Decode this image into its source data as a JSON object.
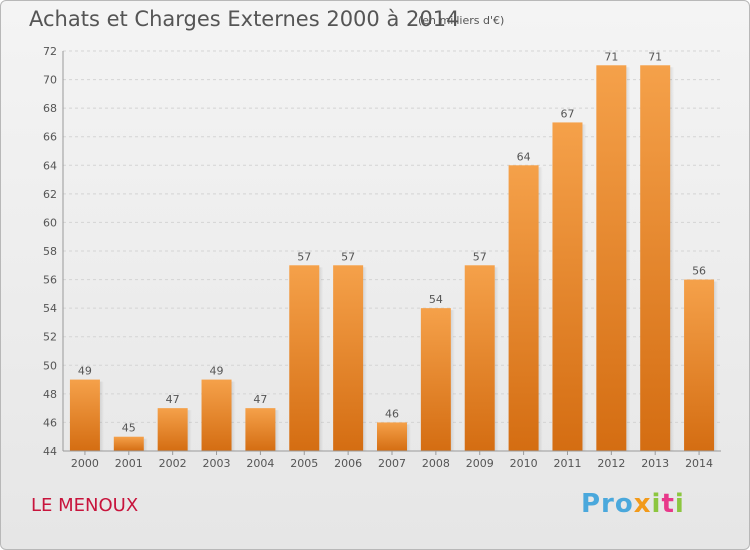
{
  "header": {
    "title": "Achats et Charges Externes 2000 à 2014",
    "unit": "(en milliers d'€)"
  },
  "footer": {
    "commune": "LE MENOUX",
    "logo": "Proxiti"
  },
  "colors": {
    "bar_top": "#f5a14a",
    "bar_bottom": "#d46d12",
    "title": "#555555",
    "commune": "#c8143c"
  },
  "chart_data": {
    "type": "bar",
    "categories": [
      "2000",
      "2001",
      "2002",
      "2003",
      "2004",
      "2005",
      "2006",
      "2007",
      "2008",
      "2009",
      "2010",
      "2011",
      "2012",
      "2013",
      "2014"
    ],
    "values": [
      49,
      45,
      47,
      49,
      47,
      57,
      57,
      46,
      54,
      57,
      64,
      67,
      71,
      71,
      56
    ],
    "ylim": [
      44,
      72
    ],
    "yticks": [
      44,
      46,
      48,
      50,
      52,
      54,
      56,
      58,
      60,
      62,
      64,
      66,
      68,
      70,
      72
    ],
    "grid": true,
    "data_labels": true
  }
}
